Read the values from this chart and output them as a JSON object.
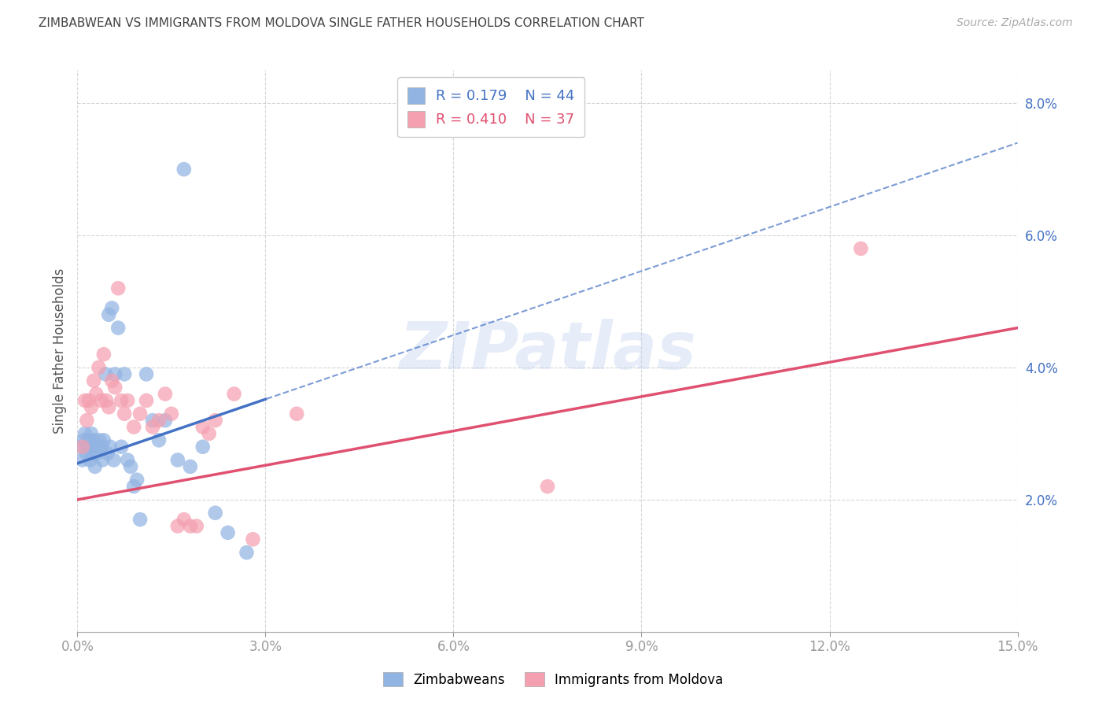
{
  "title": "ZIMBABWEAN VS IMMIGRANTS FROM MOLDOVA SINGLE FATHER HOUSEHOLDS CORRELATION CHART",
  "source": "Source: ZipAtlas.com",
  "ylabel": "Single Father Households",
  "x_tick_vals": [
    0.0,
    3.0,
    6.0,
    9.0,
    12.0,
    15.0
  ],
  "x_tick_labels": [
    "0.0%",
    "3.0%",
    "6.0%",
    "9.0%",
    "12.0%",
    "15.0%"
  ],
  "y_tick_vals": [
    2.0,
    4.0,
    6.0,
    8.0
  ],
  "y_tick_labels": [
    "2.0%",
    "4.0%",
    "6.0%",
    "8.0%"
  ],
  "blue_R": 0.179,
  "blue_N": 44,
  "pink_R": 0.41,
  "pink_N": 37,
  "blue_color": "#92B4E3",
  "pink_color": "#F4A0B0",
  "blue_line_color": "#4472C4",
  "pink_line_color": "#E05070",
  "watermark": "ZIPatlas",
  "legend_label_blue": "Zimbabweans",
  "legend_label_pink": "Immigrants from Moldova",
  "blue_line_x0": 0.0,
  "blue_line_y0": 2.55,
  "blue_line_x1": 15.0,
  "blue_line_y1": 7.4,
  "blue_solid_x1": 3.0,
  "pink_line_x0": 0.0,
  "pink_line_y0": 2.0,
  "pink_line_x1": 15.0,
  "pink_line_y1": 4.6,
  "blue_scatter_x": [
    0.05,
    0.08,
    0.1,
    0.12,
    0.14,
    0.16,
    0.18,
    0.2,
    0.22,
    0.24,
    0.26,
    0.28,
    0.3,
    0.32,
    0.35,
    0.38,
    0.4,
    0.42,
    0.45,
    0.48,
    0.5,
    0.52,
    0.55,
    0.58,
    0.6,
    0.65,
    0.7,
    0.75,
    0.8,
    0.85,
    0.9,
    0.95,
    1.0,
    1.1,
    1.2,
    1.3,
    1.4,
    1.6,
    1.8,
    2.0,
    2.2,
    2.4,
    2.7,
    1.7
  ],
  "blue_scatter_y": [
    2.8,
    2.6,
    2.9,
    3.0,
    2.7,
    2.8,
    2.9,
    2.6,
    3.0,
    2.7,
    2.9,
    2.5,
    2.7,
    2.8,
    2.9,
    2.8,
    2.6,
    2.9,
    3.9,
    2.7,
    4.8,
    2.8,
    4.9,
    2.6,
    3.9,
    4.6,
    2.8,
    3.9,
    2.6,
    2.5,
    2.2,
    2.3,
    1.7,
    3.9,
    3.2,
    2.9,
    3.2,
    2.6,
    2.5,
    2.8,
    1.8,
    1.5,
    1.2,
    7.0
  ],
  "pink_scatter_x": [
    0.08,
    0.12,
    0.15,
    0.18,
    0.22,
    0.26,
    0.3,
    0.34,
    0.38,
    0.42,
    0.46,
    0.5,
    0.55,
    0.6,
    0.65,
    0.7,
    0.75,
    0.8,
    0.9,
    1.0,
    1.1,
    1.2,
    1.3,
    1.4,
    1.5,
    1.6,
    1.7,
    1.8,
    1.9,
    2.0,
    2.2,
    2.5,
    2.8,
    3.5,
    7.5,
    12.5,
    2.1
  ],
  "pink_scatter_y": [
    2.8,
    3.5,
    3.2,
    3.5,
    3.4,
    3.8,
    3.6,
    4.0,
    3.5,
    4.2,
    3.5,
    3.4,
    3.8,
    3.7,
    5.2,
    3.5,
    3.3,
    3.5,
    3.1,
    3.3,
    3.5,
    3.1,
    3.2,
    3.6,
    3.3,
    1.6,
    1.7,
    1.6,
    1.6,
    3.1,
    3.2,
    3.6,
    1.4,
    3.3,
    2.2,
    5.8,
    3.0
  ],
  "background_color": "#ffffff",
  "grid_color": "#cccccc",
  "axis_color": "#4472C4",
  "title_color": "#444444"
}
